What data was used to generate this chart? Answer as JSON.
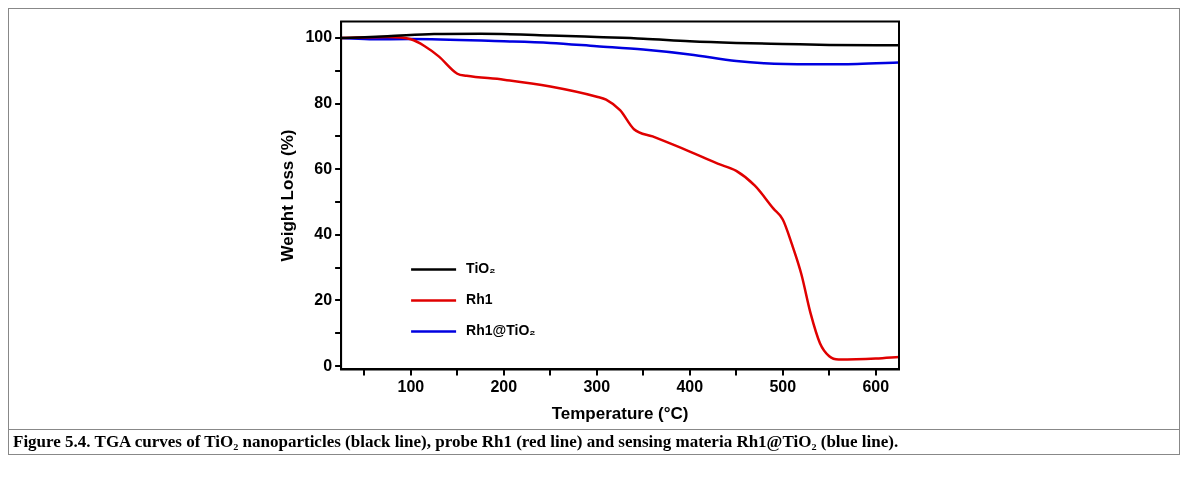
{
  "chart_data": {
    "type": "line",
    "xlabel": "Temperature (°C)",
    "ylabel": "Weight Loss (%)",
    "annotations": [
      "Figure 5.4. TGA curves of TiO₂ nanoparticles (black line), probe Rh1 (red line) and sensing materia Rh1@TiO₂  (blue line)."
    ],
    "xlim": [
      25,
      625
    ],
    "ylim": [
      -1,
      105
    ],
    "xticks": [
      {
        "value": 50,
        "label": null
      },
      100,
      {
        "value": 150,
        "label": null
      },
      200,
      {
        "value": 250,
        "label": null
      },
      300,
      {
        "value": 350,
        "label": null
      },
      400,
      {
        "value": 450,
        "label": null
      },
      500,
      {
        "value": 550,
        "label": null
      },
      600
    ],
    "yticks": [
      0,
      {
        "value": 10,
        "label": null
      },
      20,
      {
        "value": 30,
        "label": null
      },
      40,
      {
        "value": 50,
        "label": null
      },
      60,
      {
        "value": 70,
        "label": null
      },
      80,
      {
        "value": 90,
        "label": null
      },
      100
    ],
    "grid": false,
    "legend": "bottom left",
    "marker": "none",
    "line_style": "solid",
    "series": [
      {
        "name": "TiO₂",
        "color": "#000000",
        "x": [
          25,
          75,
          125,
          175,
          250,
          300,
          350,
          400,
          450,
          500,
          550,
          625
        ],
        "values": [
          100,
          100.5,
          101.2,
          101.3,
          100.8,
          100.3,
          99.8,
          99,
          98.5,
          98.2,
          97.9,
          97.8
        ]
      },
      {
        "name": "Rh1",
        "color": "#e00000",
        "x": [
          25,
          75,
          100,
          115,
          130,
          150,
          160,
          200,
          250,
          300,
          310,
          325,
          340,
          360,
          400,
          430,
          450,
          470,
          490,
          500,
          510,
          520,
          530,
          540,
          550,
          560,
          600,
          625
        ],
        "values": [
          100,
          100.3,
          99.6,
          97.5,
          94.4,
          89.1,
          88.5,
          87.3,
          85.2,
          82.1,
          81.2,
          78,
          72.2,
          70,
          65.4,
          61.7,
          59.5,
          55,
          48,
          44.7,
          37,
          28,
          16,
          7,
          3,
          2,
          2.3,
          2.8
        ]
      },
      {
        "name": "Rh1@TiO₂",
        "color": "#0000e0",
        "x": [
          25,
          60,
          100,
          200,
          250,
          300,
          350,
          400,
          450,
          480,
          530,
          580,
          625
        ],
        "values": [
          100,
          99.6,
          99.7,
          99,
          98.5,
          97.5,
          96.5,
          95,
          93,
          92.3,
          92,
          92.1,
          92.5
        ]
      }
    ]
  }
}
